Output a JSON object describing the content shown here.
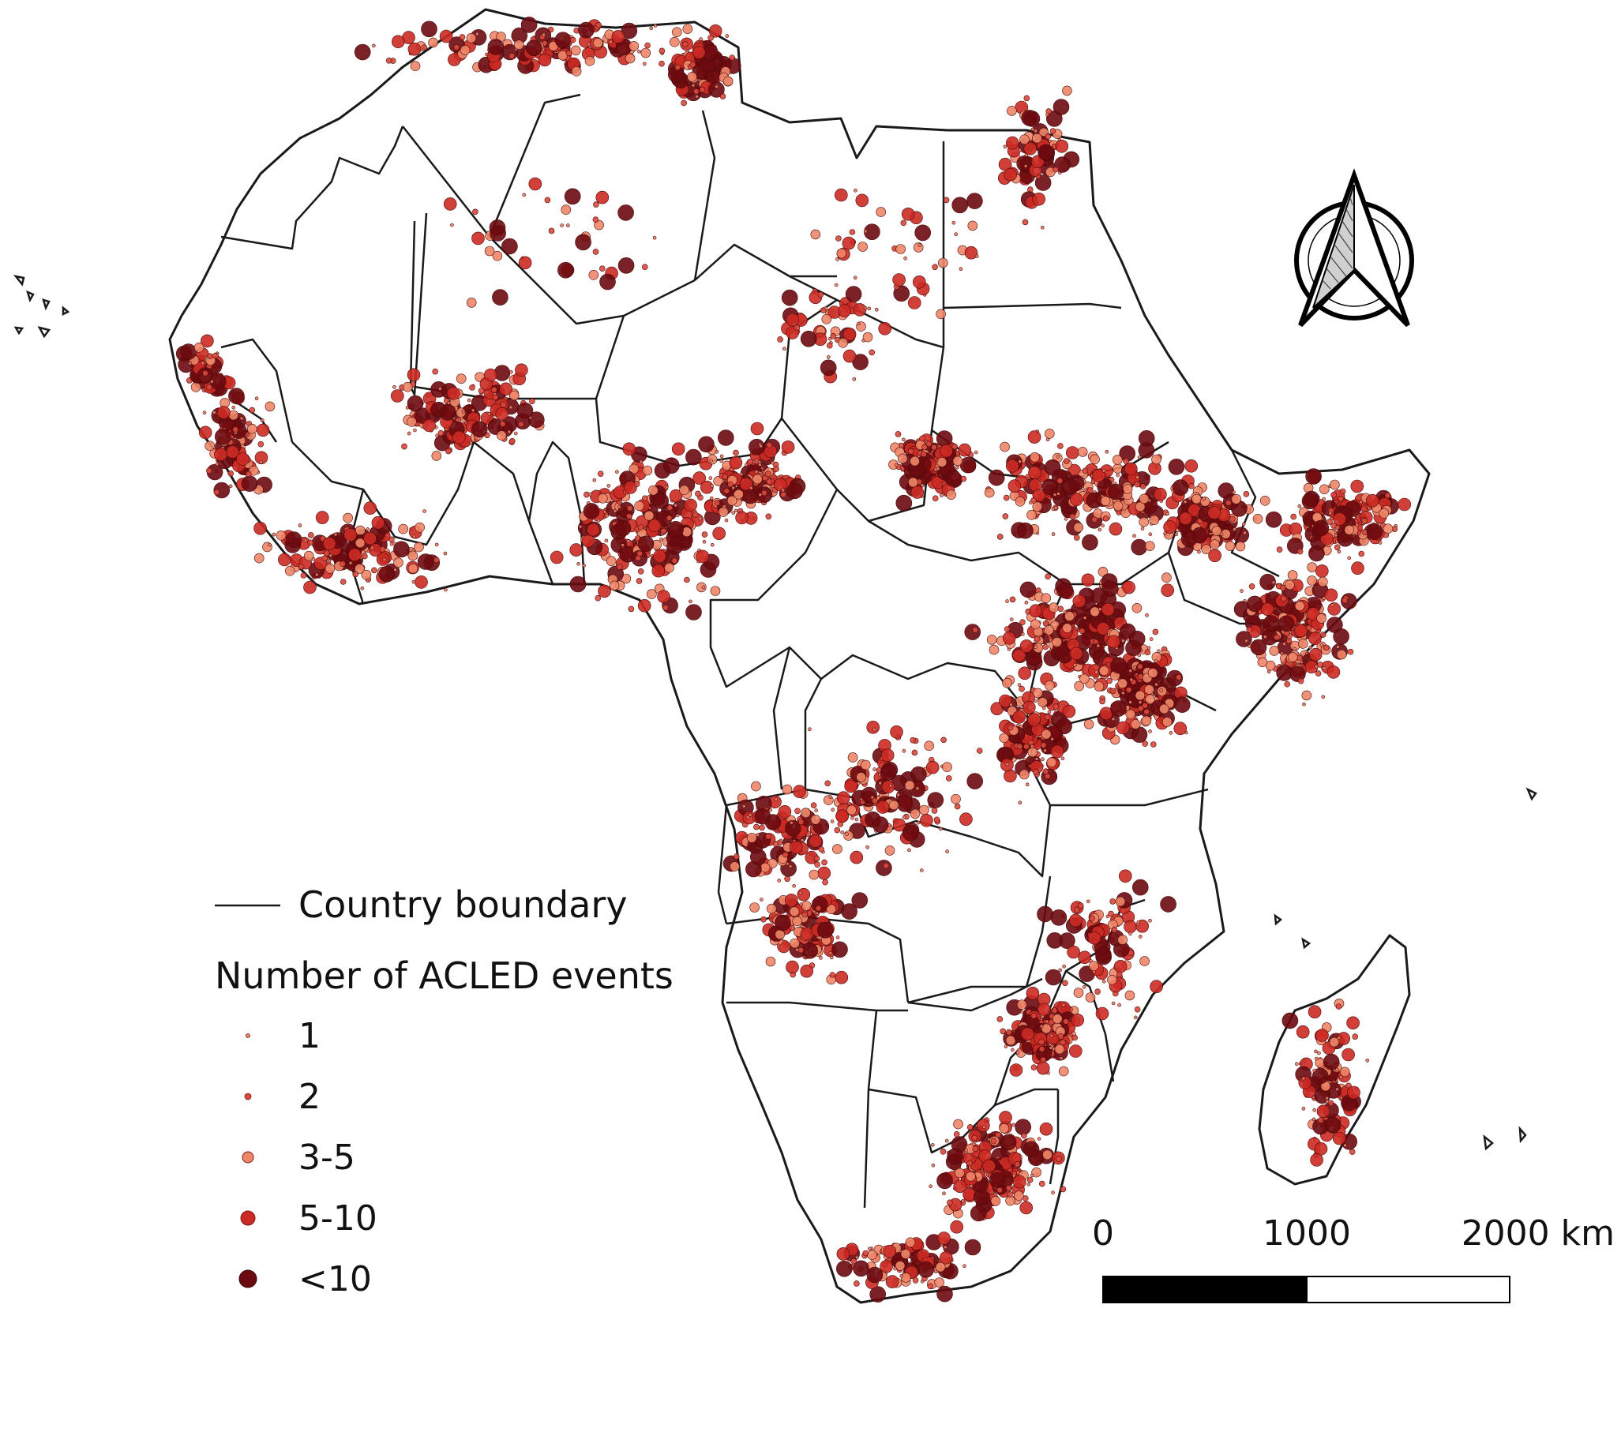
{
  "legend": {
    "boundary_label": "Country boundary",
    "events_title": "Number of ACLED events",
    "classes": [
      {
        "label": "1",
        "color": "#e8806a"
      },
      {
        "label": "2",
        "color": "#d9483c"
      },
      {
        "label": "3-5",
        "color": "#ee8668"
      },
      {
        "label": "5-10",
        "color": "#cc2a24"
      },
      {
        "label": "<10",
        "color": "#6b0a10"
      }
    ]
  },
  "scale_bar": {
    "labels": [
      "0",
      "1000",
      "2000 km"
    ]
  },
  "north_arrow": {
    "icon": "north-arrow-icon"
  },
  "colors": {
    "boundary": "#1a1a1a",
    "land": "#ffffff",
    "dot_dark": "#6b0a10",
    "dot_mid": "#cc2a24",
    "dot_light": "#ee8668"
  }
}
